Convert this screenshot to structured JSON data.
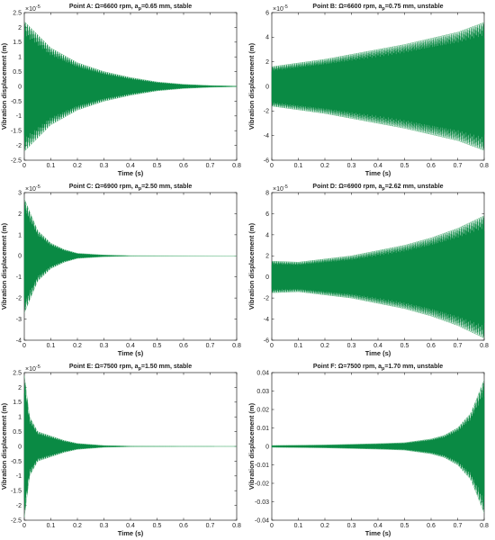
{
  "chart_data": [
    {
      "type": "line",
      "title_main": "Point A: Ω=6600 rpm, a",
      "title_sub": "p",
      "title_rest": "=0.65 mm, stable",
      "xlabel": "Time (s)",
      "ylabel": "Vibration displacement (m)",
      "xlim": [
        0,
        0.8
      ],
      "ylim": [
        -2.5,
        2.5
      ],
      "xticks": [
        "0",
        "0.1",
        "0.2",
        "0.3",
        "0.4",
        "0.5",
        "0.6",
        "0.7",
        "0.8"
      ],
      "yticks": [
        "2.5",
        "2",
        "1.5",
        "1",
        "0.5",
        "0",
        "-0.5",
        "-1",
        "-1.5",
        "-2",
        "-2.5"
      ],
      "multiplier_base": "×10",
      "multiplier_exp": "-5",
      "envelope": "decay",
      "envelope_points": [
        [
          0,
          2.2
        ],
        [
          0.1,
          1.3
        ],
        [
          0.2,
          0.8
        ],
        [
          0.3,
          0.5
        ],
        [
          0.4,
          0.3
        ],
        [
          0.5,
          0.15
        ],
        [
          0.6,
          0.07
        ],
        [
          0.7,
          0.03
        ],
        [
          0.8,
          0.01
        ]
      ],
      "series_color": "#0a8a44"
    },
    {
      "type": "line",
      "title_main": "Point B: Ω=6600 rpm, a",
      "title_sub": "p",
      "title_rest": "=0.75 mm, unstable",
      "xlabel": "Time (s)",
      "ylabel": "Vibration displacement (m)",
      "xlim": [
        0,
        0.8
      ],
      "ylim": [
        -6,
        6
      ],
      "xticks": [
        "0",
        "0.1",
        "0.2",
        "0.3",
        "0.4",
        "0.5",
        "0.6",
        "0.7",
        "0.8"
      ],
      "yticks": [
        "6",
        "4",
        "2",
        "0",
        "-2",
        "-4",
        "-6"
      ],
      "multiplier_base": "×10",
      "multiplier_exp": "-5",
      "envelope": "grow",
      "envelope_points": [
        [
          0,
          1.6
        ],
        [
          0.1,
          1.9
        ],
        [
          0.2,
          2.2
        ],
        [
          0.3,
          2.6
        ],
        [
          0.4,
          3.0
        ],
        [
          0.5,
          3.4
        ],
        [
          0.6,
          3.9
        ],
        [
          0.7,
          4.4
        ],
        [
          0.8,
          5.2
        ]
      ],
      "series_color": "#0a8a44"
    },
    {
      "type": "line",
      "title_main": "Point C: Ω=6900 rpm, a",
      "title_sub": "p",
      "title_rest": "=2.50 mm, stable",
      "xlabel": "Time (s)",
      "ylabel": "Vibration displacement (m)",
      "xlim": [
        0,
        0.8
      ],
      "ylim": [
        -4,
        3
      ],
      "xticks": [
        "0",
        "0.1",
        "0.2",
        "0.3",
        "0.4",
        "0.5",
        "0.6",
        "0.7",
        "0.8"
      ],
      "yticks": [
        "3",
        "2",
        "1",
        "0",
        "-1",
        "-2",
        "-3",
        "-4"
      ],
      "multiplier_base": "×10",
      "multiplier_exp": "-5",
      "envelope": "decay",
      "envelope_points": [
        [
          0,
          2.7
        ],
        [
          0.05,
          1.2
        ],
        [
          0.1,
          0.6
        ],
        [
          0.15,
          0.3
        ],
        [
          0.2,
          0.12
        ],
        [
          0.3,
          0.04
        ],
        [
          0.4,
          0.01
        ],
        [
          0.8,
          0.0
        ]
      ],
      "series_color": "#0a8a44"
    },
    {
      "type": "line",
      "title_main": "Point D: Ω=6900 rpm, a",
      "title_sub": "p",
      "title_rest": "=2.62 mm, unstable",
      "xlabel": "Time (s)",
      "ylabel": "Vibration displacement (m)",
      "xlim": [
        0,
        0.8
      ],
      "ylim": [
        -6,
        8
      ],
      "xticks": [
        "0",
        "0.1",
        "0.2",
        "0.3",
        "0.4",
        "0.5",
        "0.6",
        "0.7",
        "0.8"
      ],
      "yticks": [
        "8",
        "6",
        "4",
        "2",
        "0",
        "-2",
        "-4",
        "-6"
      ],
      "multiplier_base": "×10",
      "multiplier_exp": "-5",
      "envelope": "grow",
      "envelope_points": [
        [
          0,
          1.5
        ],
        [
          0.1,
          1.4
        ],
        [
          0.2,
          1.7
        ],
        [
          0.3,
          2.0
        ],
        [
          0.4,
          2.5
        ],
        [
          0.5,
          3.0
        ],
        [
          0.6,
          3.7
        ],
        [
          0.7,
          4.6
        ],
        [
          0.8,
          5.8
        ]
      ],
      "series_color": "#0a8a44"
    },
    {
      "type": "line",
      "title_main": "Point E: Ω=7500 rpm, a",
      "title_sub": "p",
      "title_rest": "=1.50 mm, stable",
      "xlabel": "Time (s)",
      "ylabel": "Vibration displacement (m)",
      "xlim": [
        0,
        0.8
      ],
      "ylim": [
        -2.5,
        2.5
      ],
      "xticks": [
        "0",
        "0.1",
        "0.2",
        "0.3",
        "0.4",
        "0.5",
        "0.6",
        "0.7",
        "0.8"
      ],
      "yticks": [
        "2.5",
        "2",
        "1.5",
        "1",
        "0.5",
        "0",
        "-0.5",
        "-1",
        "-1.5",
        "-2",
        "-2.5"
      ],
      "multiplier_base": "×10",
      "multiplier_exp": "-5",
      "envelope": "decay",
      "envelope_points": [
        [
          0,
          2.4
        ],
        [
          0.02,
          1.0
        ],
        [
          0.05,
          0.5
        ],
        [
          0.1,
          0.35
        ],
        [
          0.15,
          0.2
        ],
        [
          0.2,
          0.1
        ],
        [
          0.3,
          0.03
        ],
        [
          0.4,
          0.01
        ],
        [
          0.8,
          0.0
        ]
      ],
      "series_color": "#0a8a44"
    },
    {
      "type": "line",
      "title_main": "Point F: Ω=7500 rpm, a",
      "title_sub": "p",
      "title_rest": "=1.70 mm, unstable",
      "xlabel": "Time (s)",
      "ylabel": "Vibration displacement (m)",
      "xlim": [
        0,
        0.8
      ],
      "ylim": [
        -0.04,
        0.04
      ],
      "xticks": [
        "0",
        "0.1",
        "0.2",
        "0.3",
        "0.4",
        "0.5",
        "0.6",
        "0.7",
        "0.8"
      ],
      "yticks": [
        "0.04",
        "0.03",
        "0.02",
        "0.01",
        "0",
        "-0.01",
        "-0.02",
        "-0.03",
        "-0.04"
      ],
      "multiplier_base": "",
      "multiplier_exp": "",
      "envelope": "grow",
      "envelope_points": [
        [
          0,
          0.0005
        ],
        [
          0.2,
          0.0008
        ],
        [
          0.4,
          0.0015
        ],
        [
          0.5,
          0.002
        ],
        [
          0.6,
          0.004
        ],
        [
          0.65,
          0.006
        ],
        [
          0.7,
          0.01
        ],
        [
          0.75,
          0.018
        ],
        [
          0.8,
          0.036
        ]
      ],
      "series_color": "#0a8a44"
    }
  ]
}
